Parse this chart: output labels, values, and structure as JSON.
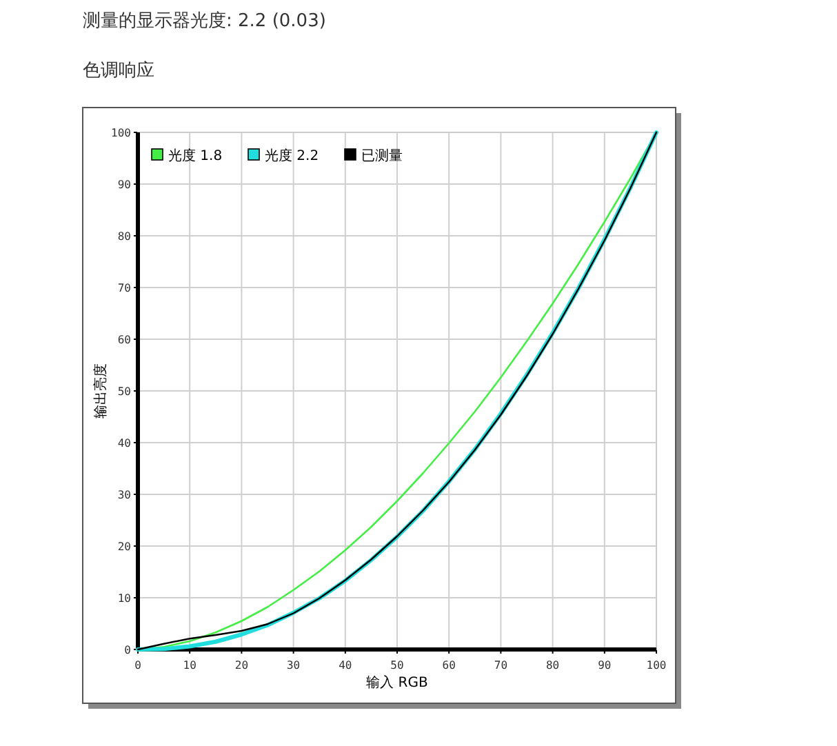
{
  "chart_data": {
    "type": "line",
    "title": "测量的显示器光度: 2.2 (0.03)",
    "subtitle": "色调响应",
    "xlabel": "输入 RGB",
    "ylabel": "输出亮度",
    "xlim": [
      0,
      100
    ],
    "ylim": [
      0,
      100
    ],
    "xticks": [
      0,
      10,
      20,
      30,
      40,
      50,
      60,
      70,
      80,
      90,
      100
    ],
    "yticks": [
      0,
      10,
      20,
      30,
      40,
      50,
      60,
      70,
      80,
      90,
      100
    ],
    "grid": true,
    "legend": "top left",
    "marker": "none",
    "line_style": "solid",
    "x": [
      0,
      5,
      10,
      15,
      20,
      25,
      30,
      35,
      40,
      45,
      50,
      55,
      60,
      65,
      70,
      75,
      80,
      85,
      90,
      95,
      100
    ],
    "series": [
      {
        "name": "光度 1.8",
        "color": "#44ee44",
        "values": [
          0,
          0.5,
          1.6,
          3.3,
          5.5,
          8.2,
          11.5,
          15.1,
          19.2,
          23.7,
          28.7,
          34.1,
          39.9,
          46.0,
          52.6,
          59.6,
          66.9,
          74.6,
          82.7,
          91.1,
          100
        ]
      },
      {
        "name": "光度 2.2",
        "color": "#22dddd",
        "values": [
          0,
          0.1,
          0.6,
          1.5,
          2.9,
          4.7,
          7.1,
          9.9,
          13.3,
          17.3,
          21.8,
          26.8,
          32.5,
          38.7,
          45.6,
          53.1,
          61.2,
          69.9,
          79.3,
          89.3,
          100
        ]
      },
      {
        "name": "已测量",
        "color": "#000000",
        "values": [
          0,
          1.1,
          2.1,
          2.8,
          3.6,
          4.9,
          7.0,
          9.9,
          13.4,
          17.4,
          21.9,
          26.9,
          32.4,
          38.6,
          45.4,
          52.9,
          61.0,
          69.8,
          79.1,
          89.2,
          100
        ]
      }
    ]
  }
}
